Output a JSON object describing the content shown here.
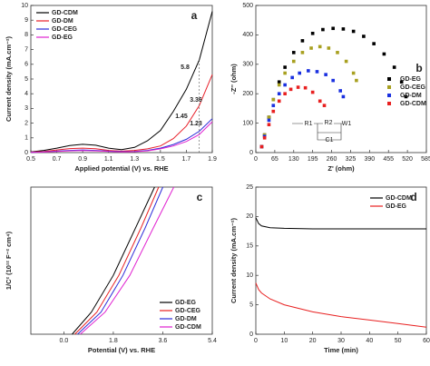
{
  "chart_data": [
    {
      "type": "line",
      "panel_label": "a",
      "xlabel": "Applied potential (V) vs. RHE",
      "ylabel": "Current density (mA.cm⁻²)",
      "xlim": [
        0.5,
        1.9
      ],
      "xticks": [
        0.5,
        0.7,
        0.9,
        1.1,
        1.3,
        1.5,
        1.7,
        1.9
      ],
      "ylim": [
        0,
        10
      ],
      "yticks": [
        0,
        1,
        2,
        3,
        4,
        5,
        6,
        7,
        8,
        9,
        10
      ],
      "legend": "upper left",
      "annotations": [
        "5.8",
        "3.36",
        "1.45",
        "1.23"
      ],
      "series": [
        {
          "name": "GD-CDM",
          "color": "#000000",
          "x": [
            0.5,
            0.6,
            0.7,
            0.8,
            0.9,
            1.0,
            1.1,
            1.2,
            1.3,
            1.4,
            1.5,
            1.6,
            1.7,
            1.8,
            1.9
          ],
          "y": [
            0.05,
            0.15,
            0.3,
            0.48,
            0.56,
            0.5,
            0.3,
            0.2,
            0.35,
            0.8,
            1.5,
            2.8,
            4.3,
            6.3,
            9.6
          ]
        },
        {
          "name": "GD-DM",
          "color": "#e8202a",
          "x": [
            0.5,
            0.6,
            0.7,
            0.8,
            0.9,
            1.0,
            1.1,
            1.2,
            1.3,
            1.4,
            1.5,
            1.6,
            1.7,
            1.8,
            1.9
          ],
          "y": [
            0.03,
            0.08,
            0.18,
            0.27,
            0.3,
            0.26,
            0.15,
            0.1,
            0.15,
            0.25,
            0.45,
            0.95,
            1.8,
            3.2,
            5.3
          ]
        },
        {
          "name": "GD-CEG",
          "color": "#2a2ad8",
          "x": [
            0.5,
            0.6,
            0.7,
            0.8,
            0.9,
            1.0,
            1.1,
            1.2,
            1.3,
            1.4,
            1.5,
            1.6,
            1.7,
            1.8,
            1.9
          ],
          "y": [
            0.02,
            0.05,
            0.1,
            0.15,
            0.18,
            0.15,
            0.1,
            0.07,
            0.08,
            0.15,
            0.3,
            0.55,
            0.9,
            1.45,
            2.3
          ]
        },
        {
          "name": "GD-EG",
          "color": "#e020d0",
          "x": [
            0.5,
            0.6,
            0.7,
            0.8,
            0.9,
            1.0,
            1.1,
            1.2,
            1.3,
            1.4,
            1.5,
            1.6,
            1.7,
            1.8,
            1.9
          ],
          "y": [
            0.02,
            0.04,
            0.08,
            0.12,
            0.14,
            0.12,
            0.08,
            0.05,
            0.06,
            0.12,
            0.25,
            0.45,
            0.75,
            1.23,
            2.1
          ]
        }
      ]
    },
    {
      "type": "scatter",
      "panel_label": "b",
      "xlabel": "Z' (ohm)",
      "ylabel": "-Z'' (ohm)",
      "xlim": [
        0,
        585
      ],
      "xticks": [
        0,
        65,
        130,
        195,
        260,
        325,
        390,
        455,
        520,
        585
      ],
      "ylim": [
        0,
        500
      ],
      "yticks": [
        0,
        100,
        200,
        300,
        400,
        500
      ],
      "legend": "center right",
      "inset_labels": [
        "R1",
        "R2",
        "W1",
        "C1"
      ],
      "series": [
        {
          "name": "GD-EG",
          "color": "#000000",
          "x": [
            20,
            30,
            45,
            60,
            80,
            100,
            130,
            160,
            195,
            230,
            265,
            300,
            335,
            370,
            405,
            440,
            475,
            500,
            515
          ],
          "y": [
            20,
            60,
            120,
            180,
            240,
            290,
            340,
            380,
            405,
            418,
            422,
            420,
            412,
            395,
            370,
            335,
            290,
            240,
            190
          ]
        },
        {
          "name": "GD-CEG",
          "color": "#a8a020",
          "x": [
            20,
            30,
            45,
            60,
            80,
            100,
            130,
            160,
            190,
            220,
            250,
            280,
            310,
            335,
            345
          ],
          "y": [
            20,
            60,
            120,
            180,
            230,
            270,
            310,
            340,
            355,
            360,
            355,
            340,
            310,
            270,
            245
          ]
        },
        {
          "name": "GD-DM",
          "color": "#1a30e0",
          "x": [
            20,
            30,
            45,
            60,
            80,
            100,
            125,
            150,
            180,
            210,
            240,
            265,
            290,
            300
          ],
          "y": [
            20,
            55,
            110,
            160,
            200,
            230,
            255,
            270,
            278,
            275,
            265,
            245,
            210,
            190
          ]
        },
        {
          "name": "GD-CDM",
          "color": "#e82020",
          "x": [
            20,
            30,
            45,
            60,
            80,
            100,
            120,
            145,
            170,
            195,
            220,
            235
          ],
          "y": [
            20,
            50,
            95,
            140,
            175,
            200,
            215,
            222,
            220,
            205,
            175,
            160
          ]
        }
      ]
    },
    {
      "type": "line",
      "panel_label": "c",
      "xlabel": "Potential (V) vs. RHE",
      "ylabel": "1/C² (10¹² F⁻² cm⁴)",
      "xlim": [
        -1.2,
        5.4
      ],
      "xticks": [
        {
          "value": 0,
          "label": "0.0"
        },
        1.8,
        3.6,
        5.4
      ],
      "ylim": [
        0,
        10
      ],
      "legend": "lower right",
      "series": [
        {
          "name": "GD-EG",
          "color": "#000000",
          "x": [
            0.3,
            1.0,
            1.8,
            2.6,
            3.3
          ],
          "y": [
            0,
            1.5,
            4,
            7.2,
            10
          ]
        },
        {
          "name": "GD-CEG",
          "color": "#e82020",
          "x": [
            0.4,
            1.2,
            2.0,
            2.8,
            3.45
          ],
          "y": [
            0,
            1.5,
            4,
            7.2,
            10
          ]
        },
        {
          "name": "GD-DM",
          "color": "#2a2ad8",
          "x": [
            0.5,
            1.35,
            2.15,
            2.95,
            3.6
          ],
          "y": [
            0,
            1.5,
            4,
            7.2,
            10
          ]
        },
        {
          "name": "GD-CDM",
          "color": "#e020d0",
          "x": [
            0.6,
            1.5,
            2.4,
            3.25,
            4.0
          ],
          "y": [
            0,
            1.5,
            4,
            7.2,
            10
          ]
        }
      ]
    },
    {
      "type": "line",
      "panel_label": "d",
      "xlabel": "Time (min)",
      "ylabel": "Current density (mA.cm⁻²)",
      "xlim": [
        0,
        60
      ],
      "xticks": [
        0,
        10,
        20,
        30,
        40,
        50,
        60
      ],
      "ylim": [
        0,
        25
      ],
      "yticks": [
        0,
        5,
        10,
        15,
        20,
        25
      ],
      "legend": "upper right",
      "series": [
        {
          "name": "GD-CDM",
          "color": "#000000",
          "x": [
            0,
            1,
            2,
            5,
            10,
            20,
            30,
            40,
            50,
            60
          ],
          "y": [
            19.8,
            18.8,
            18.4,
            18.1,
            18,
            17.9,
            17.9,
            17.9,
            17.9,
            17.9
          ]
        },
        {
          "name": "GD-EG",
          "color": "#e82020",
          "x": [
            0,
            1,
            2,
            5,
            10,
            20,
            30,
            40,
            50,
            60
          ],
          "y": [
            8.7,
            7.6,
            7,
            6,
            5,
            3.8,
            3,
            2.4,
            1.8,
            1.2
          ]
        }
      ]
    }
  ]
}
